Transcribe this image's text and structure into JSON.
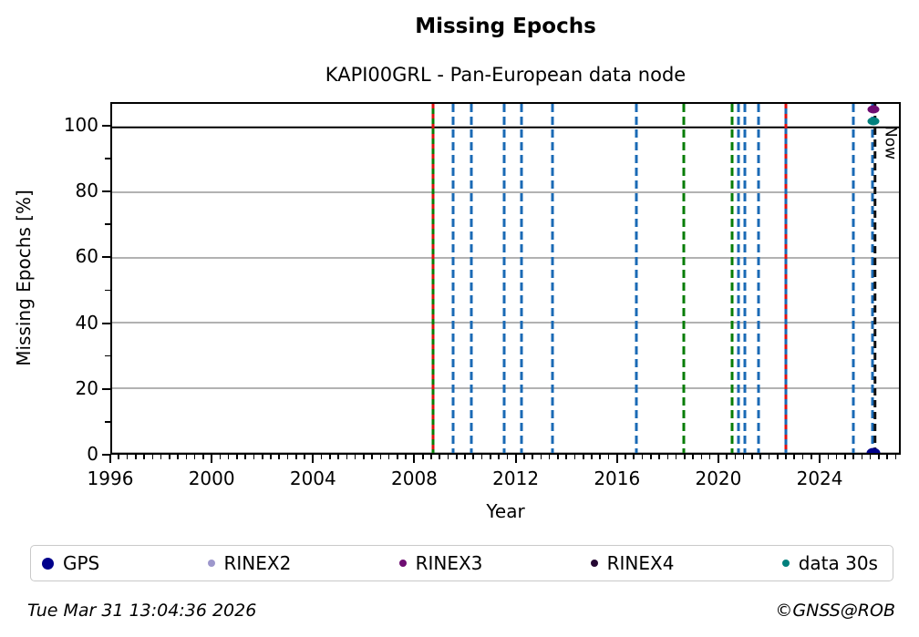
{
  "title": "Missing Epochs",
  "subtitle": "KAPI00GRL - Pan-European data node",
  "footer": {
    "timestamp": "Tue Mar 31 13:04:36 2026",
    "credit": "©GNSS@ROB"
  },
  "chart_data": {
    "type": "scatter",
    "title": "Missing Epochs",
    "subtitle": "KAPI00GRL - Pan-European data node",
    "xlabel": "Year",
    "ylabel": "Missing Epochs [%]",
    "xlim": [
      1996,
      2027.2
    ],
    "ylim": [
      0,
      107.2
    ],
    "x_major_ticks": [
      1996,
      2000,
      2004,
      2008,
      2012,
      2016,
      2020,
      2024
    ],
    "x_minor_step_years": 0.33333,
    "y_major_ticks": [
      0,
      20,
      40,
      60,
      80,
      100
    ],
    "y_minor_step": 10,
    "grid": "horizontal-only",
    "grid_y_values": [
      0,
      20,
      40,
      60,
      80
    ],
    "hline": 100,
    "colors": {
      "blue_event": "#1a6ab5",
      "green_event": "#077d07",
      "red_event": "#dd1111",
      "now_line": "#111111",
      "gridline": "#b2b2b2",
      "axis": "#000000"
    },
    "event_lines": [
      {
        "year": 2008.74,
        "color": "green_event",
        "style": "solid"
      },
      {
        "year": 2008.74,
        "color": "red_event",
        "style": "dashed",
        "dash": [
          5,
          6
        ]
      },
      {
        "year": 2009.53,
        "color": "blue_event",
        "style": "dashed",
        "dash": [
          9,
          5
        ]
      },
      {
        "year": 2010.25,
        "color": "blue_event",
        "style": "dashed",
        "dash": [
          9,
          5
        ]
      },
      {
        "year": 2011.55,
        "color": "blue_event",
        "style": "dashed",
        "dash": [
          9,
          5
        ]
      },
      {
        "year": 2012.24,
        "color": "blue_event",
        "style": "dashed",
        "dash": [
          9,
          5
        ]
      },
      {
        "year": 2013.47,
        "color": "blue_event",
        "style": "dashed",
        "dash": [
          9,
          5
        ]
      },
      {
        "year": 2016.79,
        "color": "blue_event",
        "style": "dashed",
        "dash": [
          9,
          5
        ]
      },
      {
        "year": 2018.66,
        "color": "green_event",
        "style": "dashed",
        "dash": [
          9,
          5
        ]
      },
      {
        "year": 2020.58,
        "color": "green_event",
        "style": "dashed",
        "dash": [
          9,
          5
        ]
      },
      {
        "year": 2020.83,
        "color": "blue_event",
        "style": "dashed",
        "dash": [
          9,
          5
        ]
      },
      {
        "year": 2021.08,
        "color": "blue_event",
        "style": "dashed",
        "dash": [
          9,
          5
        ]
      },
      {
        "year": 2021.62,
        "color": "blue_event",
        "style": "dashed",
        "dash": [
          9,
          5
        ]
      },
      {
        "year": 2022.7,
        "color": "blue_event",
        "style": "solid"
      },
      {
        "year": 2022.7,
        "color": "red_event",
        "style": "dashed",
        "dash": [
          5,
          6
        ]
      },
      {
        "year": 2025.41,
        "color": "blue_event",
        "style": "dashed",
        "dash": [
          9,
          5
        ]
      },
      {
        "year": 2026.15,
        "color": "blue_event",
        "style": "dashed",
        "dash": [
          9,
          5
        ]
      }
    ],
    "now_line": {
      "year": 2026.25,
      "label": "Now",
      "style": "dashed",
      "dash": [
        8,
        5
      ]
    },
    "points": [
      {
        "series": "RINEX3",
        "year": 2026.2,
        "value": 105.5
      },
      {
        "series": "data 30s",
        "year": 2026.2,
        "value": 102.0
      },
      {
        "series": "GPS",
        "year": 2026.2,
        "value": 0.0
      }
    ],
    "legend": [
      {
        "label": "GPS",
        "color": "#00008b",
        "marker_size": 13
      },
      {
        "label": "RINEX2",
        "color": "#9d97cc",
        "marker_size": 8
      },
      {
        "label": "RINEX3",
        "color": "#6e0d72",
        "marker_size": 8
      },
      {
        "label": "RINEX4",
        "color": "#250833",
        "marker_size": 8
      },
      {
        "label": "data 30s",
        "color": "#00807d",
        "marker_size": 8
      }
    ],
    "legend_position": "bottom"
  }
}
